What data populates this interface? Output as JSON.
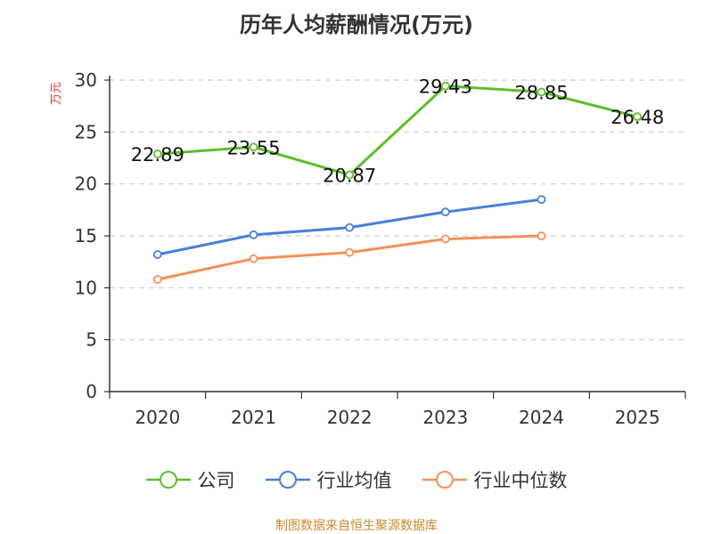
{
  "chart_data": {
    "type": "line",
    "title": "历年人均薪酬情况(万元)",
    "ylabel": "万元",
    "categories": [
      "2020",
      "2021",
      "2022",
      "2023",
      "2024",
      "2025"
    ],
    "ylim": [
      0,
      30
    ],
    "yticks": [
      "0",
      "5",
      "10",
      "15",
      "20",
      "25",
      "30"
    ],
    "grid": true,
    "legend_position": "bottom",
    "series": [
      {
        "name": "公司",
        "color": "#5cbf2a",
        "values": [
          22.89,
          23.55,
          20.87,
          29.43,
          28.85,
          26.48
        ],
        "labels": [
          "22.89",
          "23.55",
          "20.87",
          "29.43",
          "28.85",
          "26.48"
        ]
      },
      {
        "name": "行业均值",
        "color": "#4a7fd8",
        "values": [
          13.2,
          15.1,
          15.8,
          17.3,
          18.5,
          null
        ]
      },
      {
        "name": "行业中位数",
        "color": "#f5905a",
        "values": [
          10.8,
          12.8,
          13.4,
          14.7,
          15.0,
          null
        ]
      }
    ]
  },
  "source": "制图数据来自恒生聚源数据库"
}
